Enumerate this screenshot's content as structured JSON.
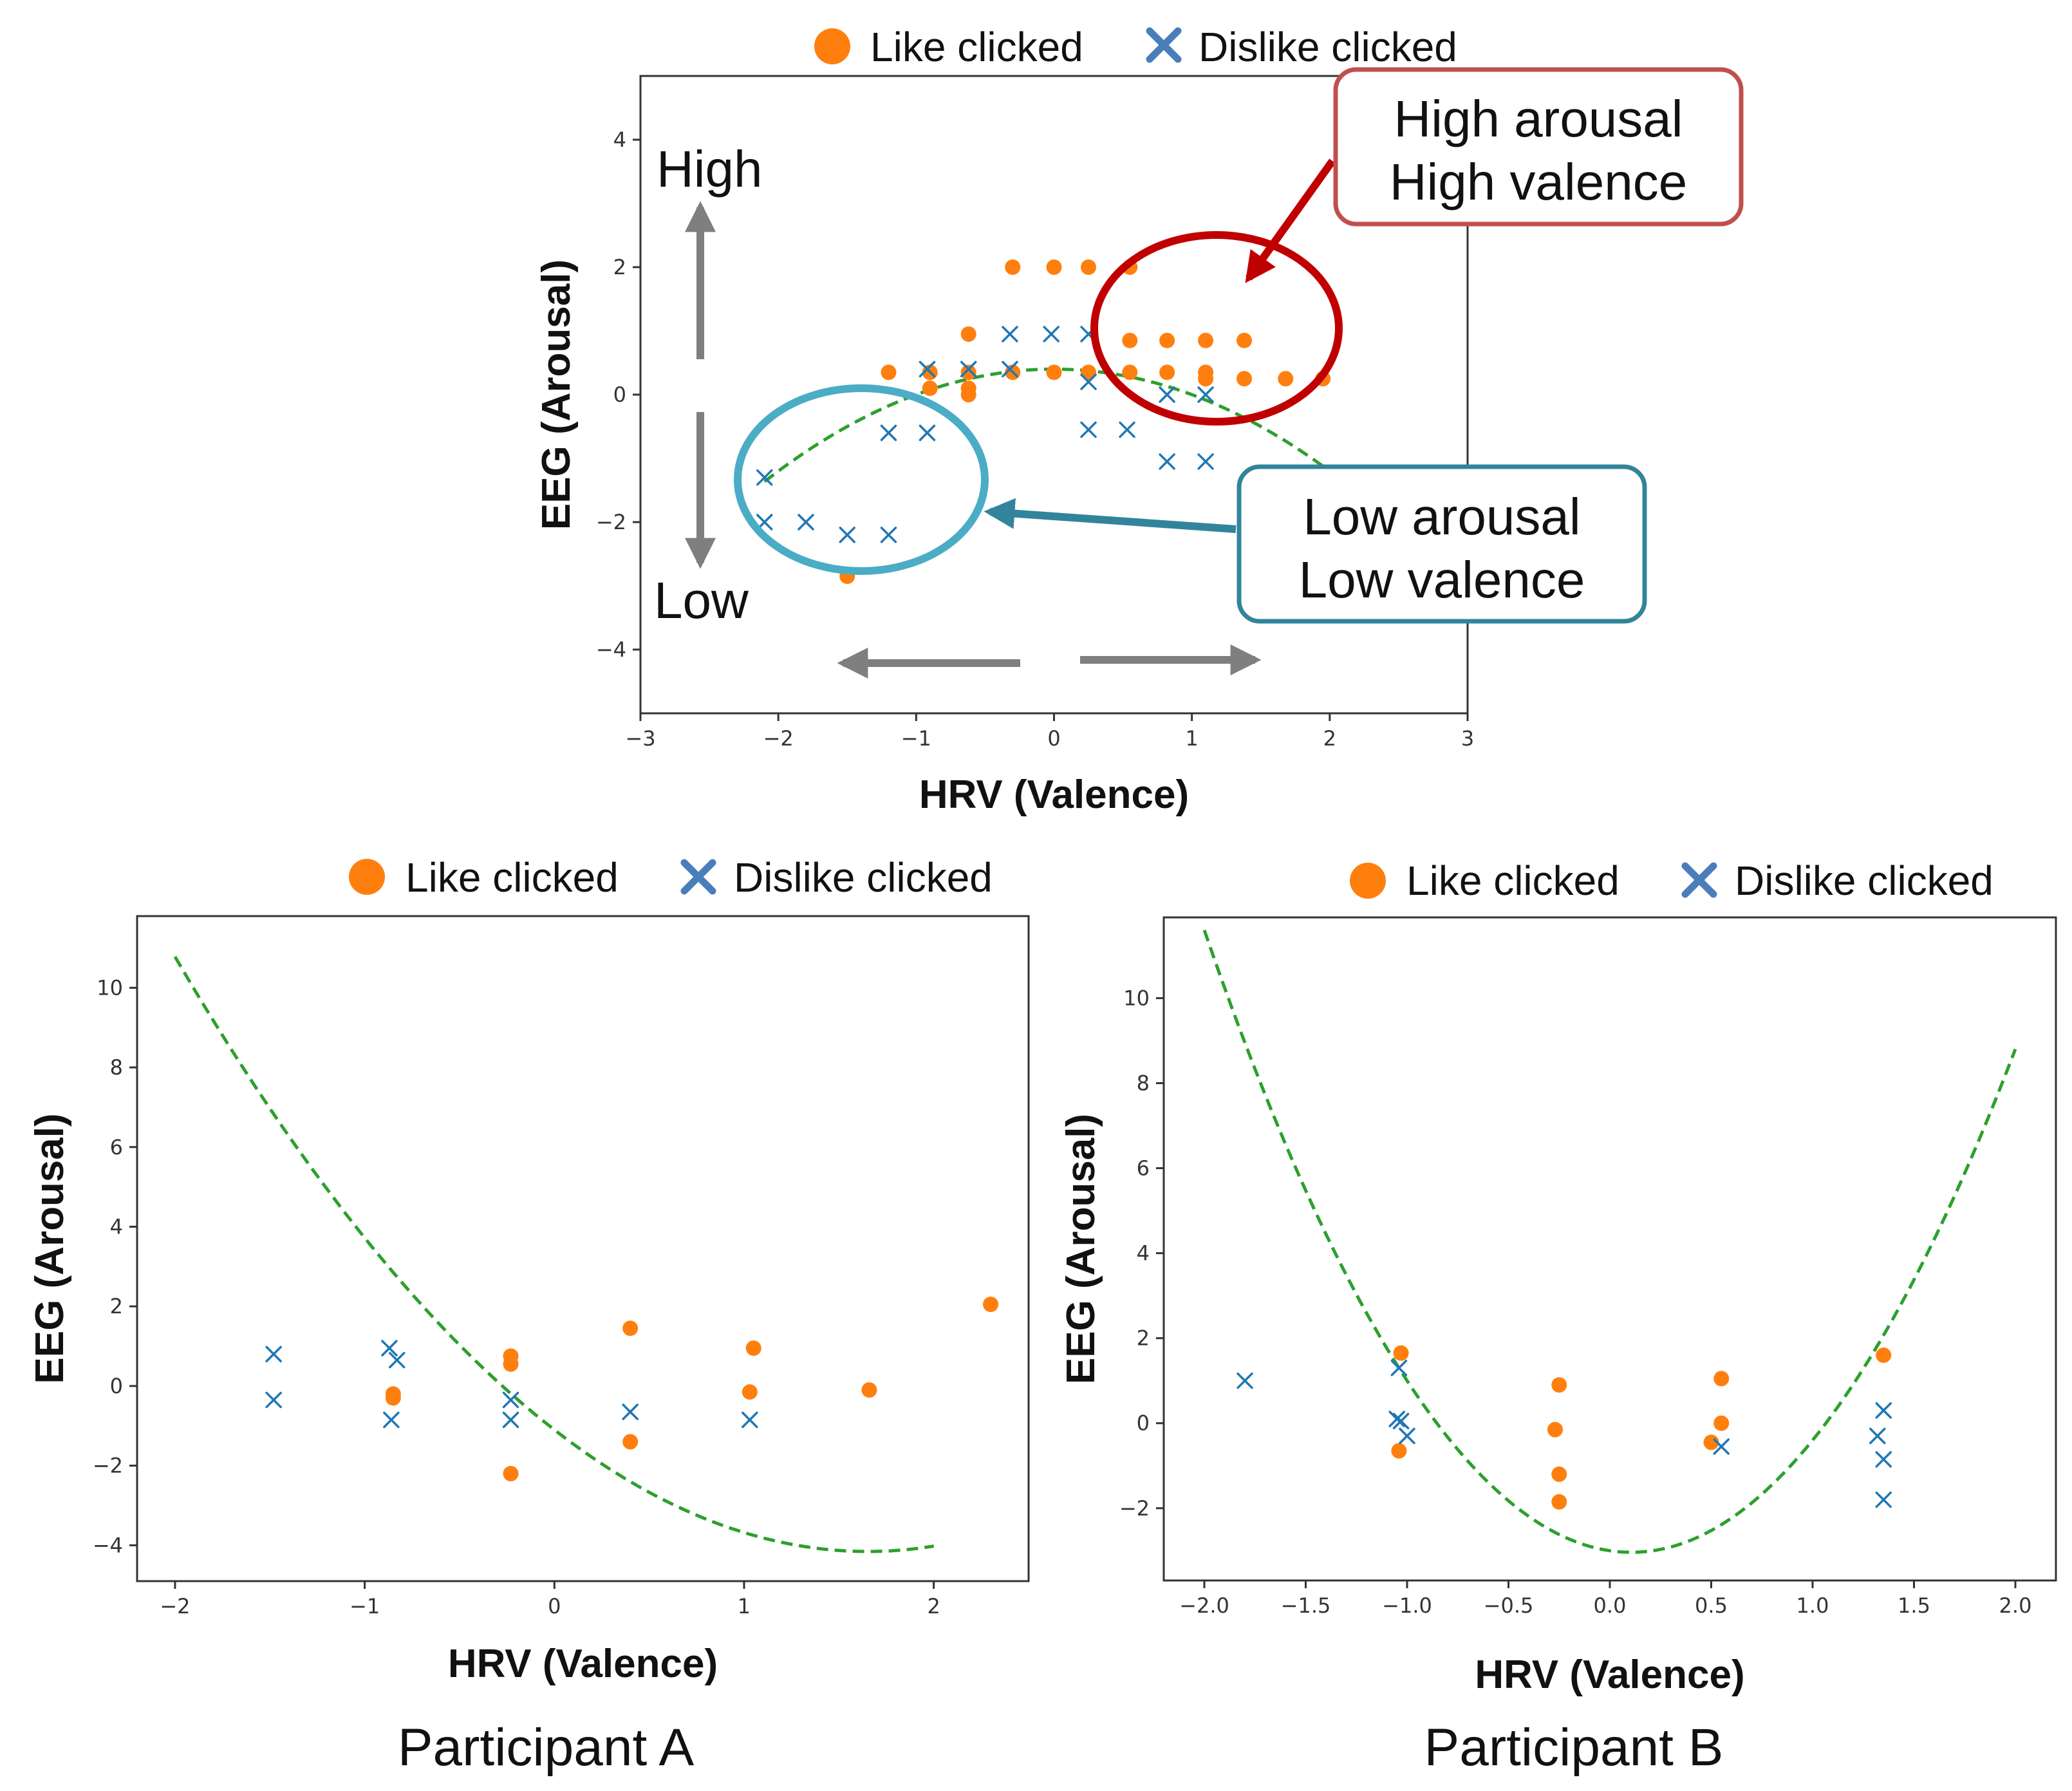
{
  "colors": {
    "like": "#ff7f0e",
    "dislike": "#1f77b4",
    "fit": "#2ca02c",
    "high_box": "#c0504d",
    "high_circle": "#c00000",
    "low_box": "#31849b",
    "low_circle": "#4bacc6",
    "arrow_gray": "#7f7f7f"
  },
  "legend": {
    "like": "Like clicked",
    "dislike": "Dislike clicked"
  },
  "chart_data": [
    {
      "id": "overview",
      "type": "scatter",
      "title": "",
      "xlabel": "HRV (Valence)",
      "ylabel": "EEG (Arousal)",
      "xlim": [
        -3,
        3
      ],
      "ylim": [
        -5,
        5
      ],
      "xticks": [
        -3,
        -2,
        -1,
        0,
        1,
        2,
        3
      ],
      "yticks": [
        -4,
        -2,
        0,
        2,
        4
      ],
      "like": [
        [
          -1.2,
          0.35
        ],
        [
          -0.9,
          0.35
        ],
        [
          -0.9,
          0.1
        ],
        [
          -0.62,
          0.95
        ],
        [
          -0.62,
          0.35
        ],
        [
          -0.62,
          0.1
        ],
        [
          -0.62,
          0.0
        ],
        [
          -0.3,
          2.0
        ],
        [
          0.0,
          2.0
        ],
        [
          0.25,
          2.0
        ],
        [
          0.55,
          2.0
        ],
        [
          -0.3,
          0.35
        ],
        [
          0.0,
          0.35
        ],
        [
          0.25,
          0.35
        ],
        [
          0.55,
          0.35
        ],
        [
          0.82,
          0.35
        ],
        [
          1.1,
          0.35
        ],
        [
          1.1,
          0.25
        ],
        [
          0.55,
          0.85
        ],
        [
          0.82,
          0.85
        ],
        [
          1.1,
          0.85
        ],
        [
          1.38,
          0.85
        ],
        [
          1.38,
          0.25
        ],
        [
          1.68,
          0.25
        ],
        [
          1.95,
          0.25
        ],
        [
          -1.5,
          -2.85
        ]
      ],
      "dislike": [
        [
          -2.1,
          -1.3
        ],
        [
          -2.1,
          -2.0
        ],
        [
          -1.8,
          -2.0
        ],
        [
          -1.5,
          -2.2
        ],
        [
          -1.2,
          -2.2
        ],
        [
          -1.2,
          -0.6
        ],
        [
          -0.92,
          -0.6
        ],
        [
          -0.92,
          0.4
        ],
        [
          -0.62,
          0.4
        ],
        [
          -0.32,
          0.95
        ],
        [
          -0.32,
          0.4
        ],
        [
          -0.02,
          0.95
        ],
        [
          0.25,
          0.95
        ],
        [
          0.25,
          0.2
        ],
        [
          0.25,
          -0.55
        ],
        [
          0.53,
          -0.55
        ],
        [
          0.82,
          0.0
        ],
        [
          0.82,
          -1.05
        ],
        [
          1.1,
          0.0
        ],
        [
          1.1,
          -1.05
        ]
      ],
      "fit": {
        "type": "quadratic",
        "x_range": [
          -2.1,
          2.0
        ],
        "coefficients": [
          -0.4,
          0.0,
          0.4
        ]
      },
      "annotations": {
        "high": "High",
        "low": "Low",
        "high_box_line1": "High arousal",
        "high_box_line2": "High valence",
        "low_box_line1": "Low arousal",
        "low_box_line2": "Low valence"
      }
    },
    {
      "id": "participant_a",
      "type": "scatter",
      "title": "",
      "caption": "Participant A",
      "xlabel": "HRV (Valence)",
      "ylabel": "EEG (Arousal)",
      "xlim": [
        -2.2,
        2.5
      ],
      "ylim": [
        -4.9,
        11.8
      ],
      "xticks": [
        -2,
        -1,
        0,
        1,
        2
      ],
      "yticks": [
        -4,
        -2,
        0,
        2,
        4,
        6,
        8,
        10
      ],
      "like": [
        [
          -0.85,
          -0.2
        ],
        [
          -0.85,
          -0.3
        ],
        [
          -0.23,
          0.75
        ],
        [
          -0.23,
          0.55
        ],
        [
          -0.23,
          -2.2
        ],
        [
          0.4,
          1.45
        ],
        [
          0.4,
          -1.4
        ],
        [
          1.05,
          0.95
        ],
        [
          1.03,
          -0.15
        ],
        [
          1.66,
          -0.1
        ],
        [
          2.3,
          2.05
        ]
      ],
      "dislike": [
        [
          -1.48,
          0.8
        ],
        [
          -1.48,
          -0.35
        ],
        [
          -0.87,
          0.95
        ],
        [
          -0.83,
          0.65
        ],
        [
          -0.86,
          -0.85
        ],
        [
          -0.23,
          -0.35
        ],
        [
          -0.23,
          -0.85
        ],
        [
          0.4,
          -0.65
        ],
        [
          1.03,
          -0.85
        ]
      ],
      "fit": {
        "type": "quadratic",
        "x_range": [
          -2.0,
          2.0
        ],
        "coefficients": [
          1.12,
          -3.7,
          -1.1
        ]
      }
    },
    {
      "id": "participant_b",
      "type": "scatter",
      "title": "",
      "caption": "Participant B",
      "xlabel": "HRV (Valence)",
      "ylabel": "EEG (Arousal)",
      "xlim": [
        -2.2,
        2.2
      ],
      "ylim": [
        -3.7,
        11.9
      ],
      "xticks": [
        -2.0,
        -1.5,
        -1.0,
        -0.5,
        0.0,
        0.5,
        1.0,
        1.5,
        2.0
      ],
      "yticks": [
        -2,
        0,
        2,
        4,
        6,
        8,
        10
      ],
      "like": [
        [
          -1.03,
          1.65
        ],
        [
          -1.04,
          -0.65
        ],
        [
          -0.25,
          0.9
        ],
        [
          -0.27,
          -0.15
        ],
        [
          -0.25,
          -1.2
        ],
        [
          -0.25,
          -1.85
        ],
        [
          0.5,
          -0.45
        ],
        [
          0.55,
          1.05
        ],
        [
          0.55,
          0.0
        ],
        [
          1.35,
          1.6
        ]
      ],
      "dislike": [
        [
          -1.8,
          1.0
        ],
        [
          -1.04,
          1.3
        ],
        [
          -1.05,
          0.1
        ],
        [
          -1.03,
          0.05
        ],
        [
          -1.0,
          -0.3
        ],
        [
          0.55,
          -0.55
        ],
        [
          1.32,
          -0.3
        ],
        [
          1.35,
          0.3
        ],
        [
          1.35,
          -0.85
        ],
        [
          1.35,
          -1.8
        ]
      ],
      "fit": {
        "type": "quadratic",
        "x_range": [
          -2.0,
          2.0
        ],
        "coefficients": [
          3.3,
          -0.7,
          -3.0
        ]
      }
    }
  ]
}
